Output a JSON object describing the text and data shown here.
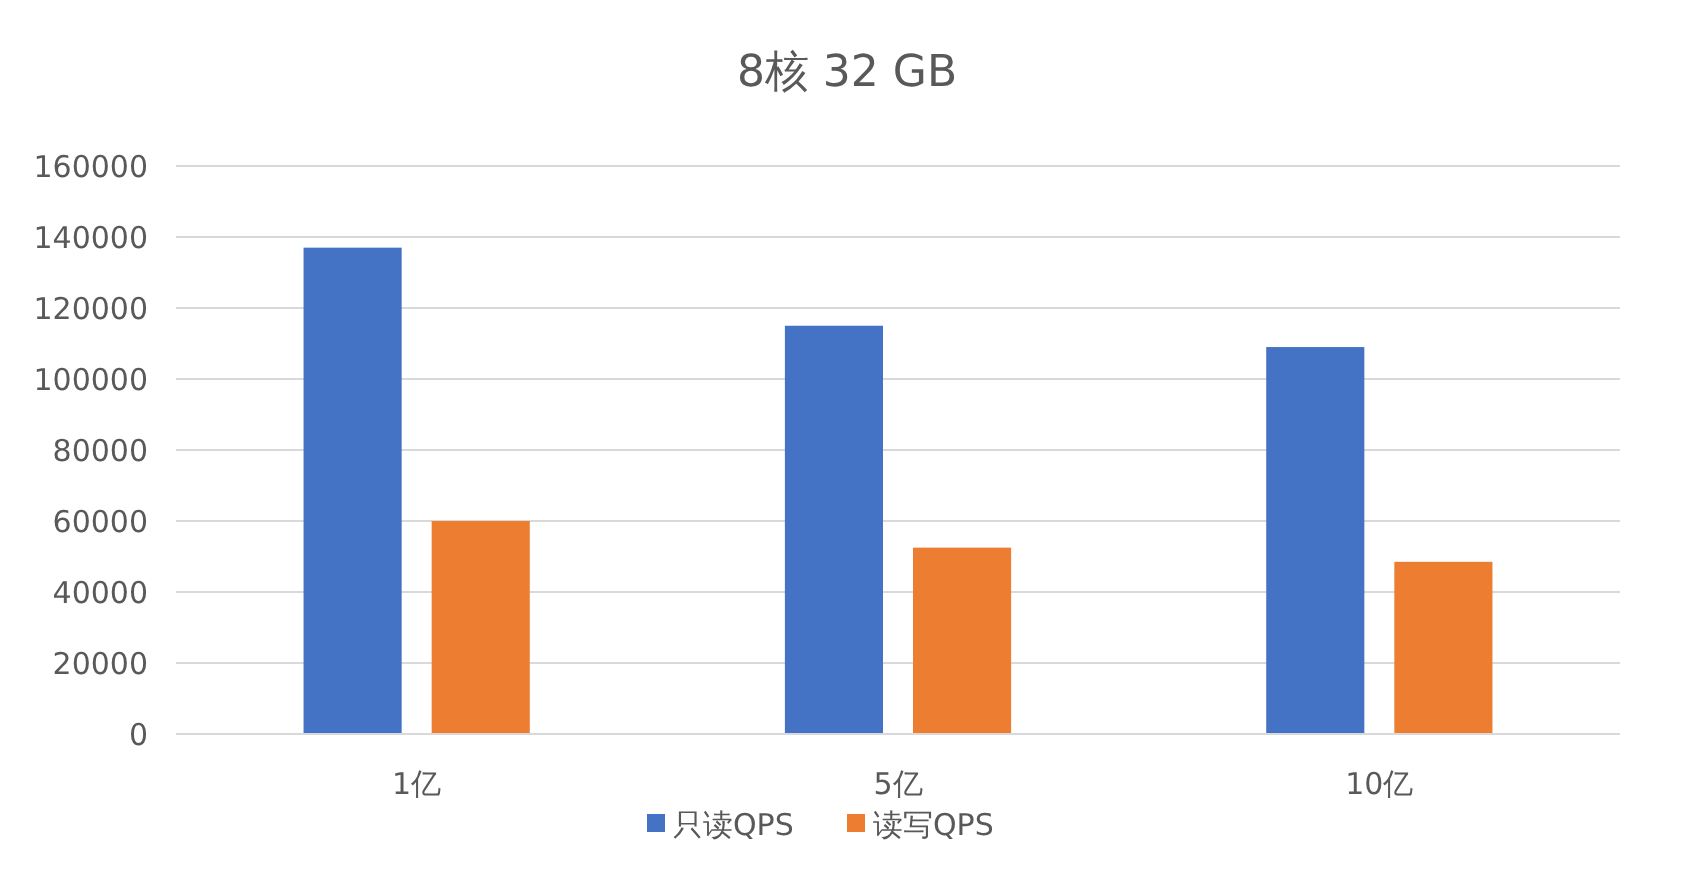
{
  "chart_data": {
    "type": "bar",
    "title": "8核 32 GB",
    "categories": [
      "1亿",
      "5亿",
      "10亿"
    ],
    "series": [
      {
        "name": "只读QPS",
        "color": "#4472c4",
        "values": [
          137000,
          115000,
          109000
        ]
      },
      {
        "name": "读写QPS",
        "color": "#ed7d31",
        "values": [
          60000,
          52500,
          48500
        ]
      }
    ],
    "ylim": [
      0,
      160000
    ],
    "yticks": [
      0,
      20000,
      40000,
      60000,
      80000,
      100000,
      120000,
      140000,
      160000
    ],
    "grid": "y",
    "legend": "bottom"
  }
}
